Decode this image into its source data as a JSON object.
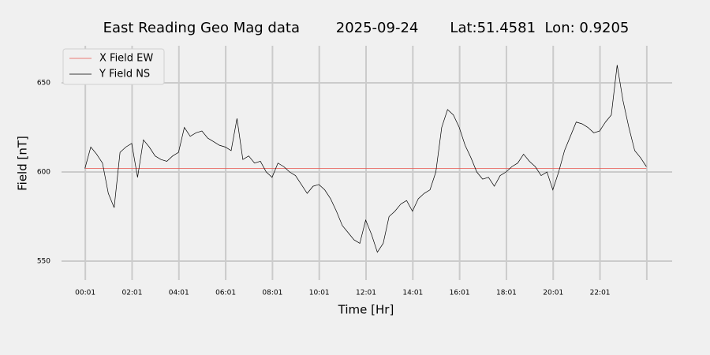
{
  "chart_data": {
    "type": "line",
    "title": "East Reading Geo Mag data        2025-09-24       Lat:51.4581  Lon: 0.9205",
    "x_label": "Time  [Hr]",
    "y_label": "Field  [nT]",
    "x": [
      0,
      0.25,
      0.5,
      0.75,
      1,
      1.25,
      1.5,
      1.75,
      2,
      2.25,
      2.5,
      2.75,
      3,
      3.25,
      3.5,
      3.75,
      4,
      4.25,
      4.5,
      4.75,
      5,
      5.25,
      5.5,
      5.75,
      6,
      6.25,
      6.5,
      6.75,
      7,
      7.25,
      7.5,
      7.75,
      8,
      8.25,
      8.5,
      8.75,
      9,
      9.25,
      9.5,
      9.75,
      10,
      10.25,
      10.5,
      10.75,
      11,
      11.25,
      11.5,
      11.75,
      12,
      12.25,
      12.5,
      12.75,
      13,
      13.25,
      13.5,
      13.75,
      14,
      14.25,
      14.5,
      14.75,
      15,
      15.25,
      15.5,
      15.75,
      16,
      16.25,
      16.5,
      16.75,
      17,
      17.25,
      17.5,
      17.75,
      18,
      18.25,
      18.5,
      18.75,
      19,
      19.25,
      19.5,
      19.75,
      20,
      20.25,
      20.5,
      20.75,
      21,
      21.25,
      21.5,
      21.75,
      22,
      22.25,
      22.5,
      22.75,
      23,
      23.25,
      23.5,
      23.75,
      24
    ],
    "series": [
      {
        "name": "X Field EW",
        "color": "#e8554e",
        "values": [
          602,
          602,
          602,
          602,
          602,
          602,
          602,
          602,
          602,
          602,
          602,
          602,
          602,
          602,
          602,
          602,
          602,
          602,
          602,
          602,
          602,
          602,
          602,
          602,
          602,
          602,
          602,
          602,
          602,
          602,
          602,
          602,
          602,
          602,
          602,
          602,
          602,
          602,
          602,
          602,
          602,
          602,
          602,
          602,
          602,
          602,
          602,
          602,
          602,
          602,
          602,
          602,
          602,
          602,
          602,
          602,
          602,
          602,
          602,
          602,
          602,
          602,
          602,
          602,
          602,
          602,
          602,
          602,
          602,
          602,
          602,
          602,
          602,
          602,
          602,
          602,
          602,
          602,
          602,
          602,
          602,
          602,
          602,
          602,
          602,
          602,
          602,
          602,
          602,
          602,
          602,
          602,
          602,
          602,
          602,
          602,
          602
        ]
      },
      {
        "name": "Y Field NS",
        "color": "#000000",
        "values": [
          602,
          614,
          610,
          605,
          588,
          580,
          611,
          614,
          616,
          597,
          618,
          614,
          609,
          607,
          606,
          609,
          611,
          625,
          620,
          622,
          623,
          619,
          617,
          615,
          614,
          612,
          630,
          607,
          609,
          605,
          606,
          600,
          597,
          605,
          603,
          600,
          598,
          593,
          588,
          592,
          593,
          590,
          585,
          578,
          570,
          566,
          562,
          560,
          573,
          565,
          555,
          560,
          575,
          578,
          582,
          584,
          578,
          585,
          588,
          590,
          600,
          625,
          635,
          632,
          625,
          615,
          608,
          600,
          596,
          597,
          592,
          598,
          600,
          603,
          605,
          610,
          606,
          603,
          598,
          600,
          590,
          600,
          612,
          620,
          628,
          627,
          625,
          622,
          623,
          628,
          632,
          660,
          640,
          625,
          612,
          608,
          603
        ]
      }
    ],
    "xlim": [
      -1.0,
      25.1
    ],
    "ylim": [
      539.4,
      670.8
    ],
    "xticks": [
      {
        "value": 0.0167,
        "label": "00:01"
      },
      {
        "value": 2.0167,
        "label": "02:01"
      },
      {
        "value": 4.0167,
        "label": "04:01"
      },
      {
        "value": 6.0167,
        "label": "06:01"
      },
      {
        "value": 8.0167,
        "label": "08:01"
      },
      {
        "value": 10.0167,
        "label": "10:01"
      },
      {
        "value": 12.0167,
        "label": "12:01"
      },
      {
        "value": 14.0167,
        "label": "14:01"
      },
      {
        "value": 16.0167,
        "label": "16:01"
      },
      {
        "value": 18.0167,
        "label": "18:01"
      },
      {
        "value": 20.0167,
        "label": "20:01"
      },
      {
        "value": 22.0167,
        "label": "22:01"
      },
      {
        "value": 24.0167,
        "label": ""
      }
    ],
    "yticks": [
      550,
      600,
      650
    ],
    "grid": true,
    "legend": "upper left"
  }
}
